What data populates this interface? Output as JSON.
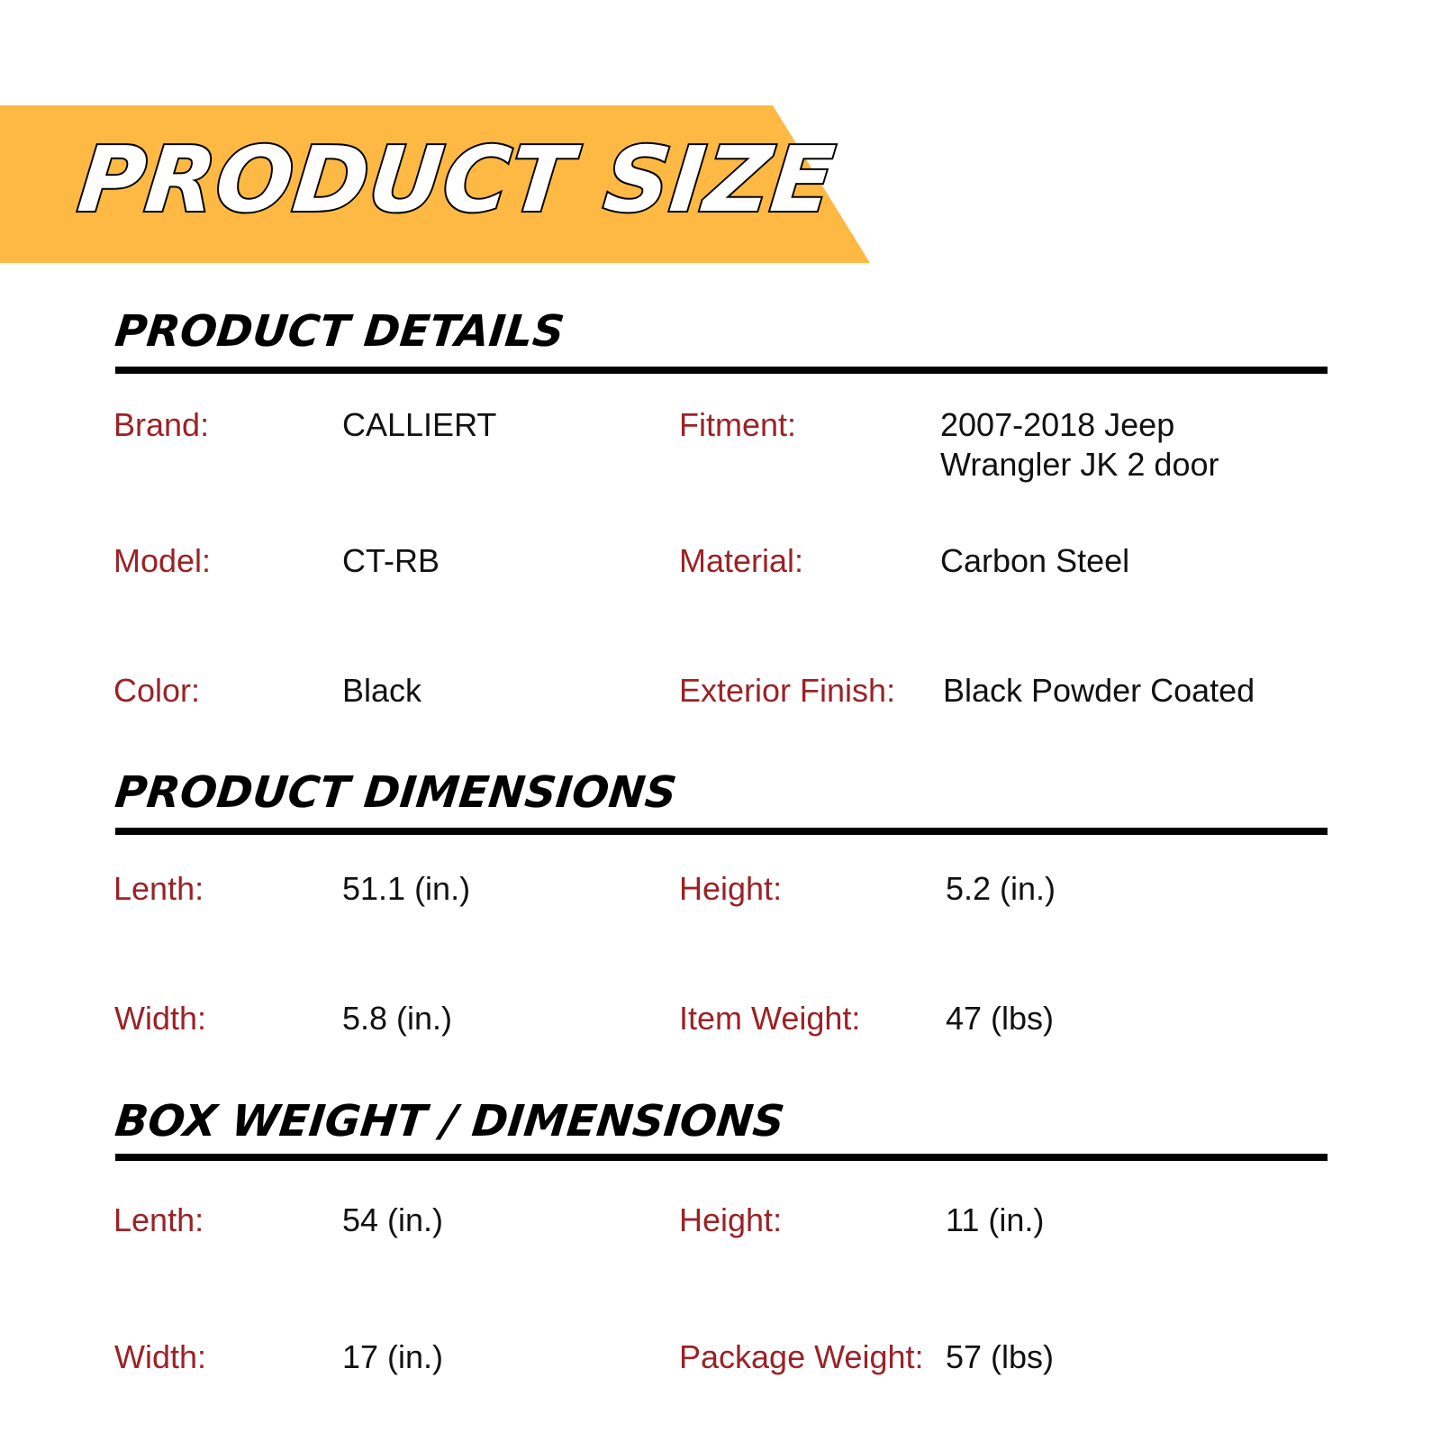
{
  "colors": {
    "banner": "#fdb943",
    "label": "#9b2226",
    "value": "#111111"
  },
  "title": "PRODUCT SIZE",
  "sections": [
    {
      "heading": "PRODUCT DETAILS",
      "rows": [
        {
          "label1": "Brand:",
          "value1": "CALLIERT",
          "label2": "Fitment:",
          "value2": "2007-2018 Jeep",
          "value2b": "Wrangler JK 2 door"
        },
        {
          "label1": "Model:",
          "value1": "CT-RB",
          "label2": "Material:",
          "value2": "Carbon Steel"
        },
        {
          "label1": "Color:",
          "value1": "Black",
          "label2": "Exterior Finish:",
          "value2": "Black Powder Coated"
        }
      ]
    },
    {
      "heading": "PRODUCT DIMENSIONS",
      "rows": [
        {
          "label1": "Lenth:",
          "value1": "51.1 (in.)",
          "label2": "Height:",
          "value2": "5.2 (in.)"
        },
        {
          "label1": "Width:",
          "value1": "5.8 (in.)",
          "label2": "Item Weight:",
          "value2": "47 (lbs)"
        }
      ]
    },
    {
      "heading": "BOX WEIGHT / DIMENSIONS",
      "rows": [
        {
          "label1": "Lenth:",
          "value1": "54 (in.)",
          "label2": "Height:",
          "value2": "11 (in.)"
        },
        {
          "label1": "Width:",
          "value1": "17 (in.)",
          "label2": "Package Weight:",
          "value2": "57 (lbs)"
        }
      ]
    }
  ]
}
